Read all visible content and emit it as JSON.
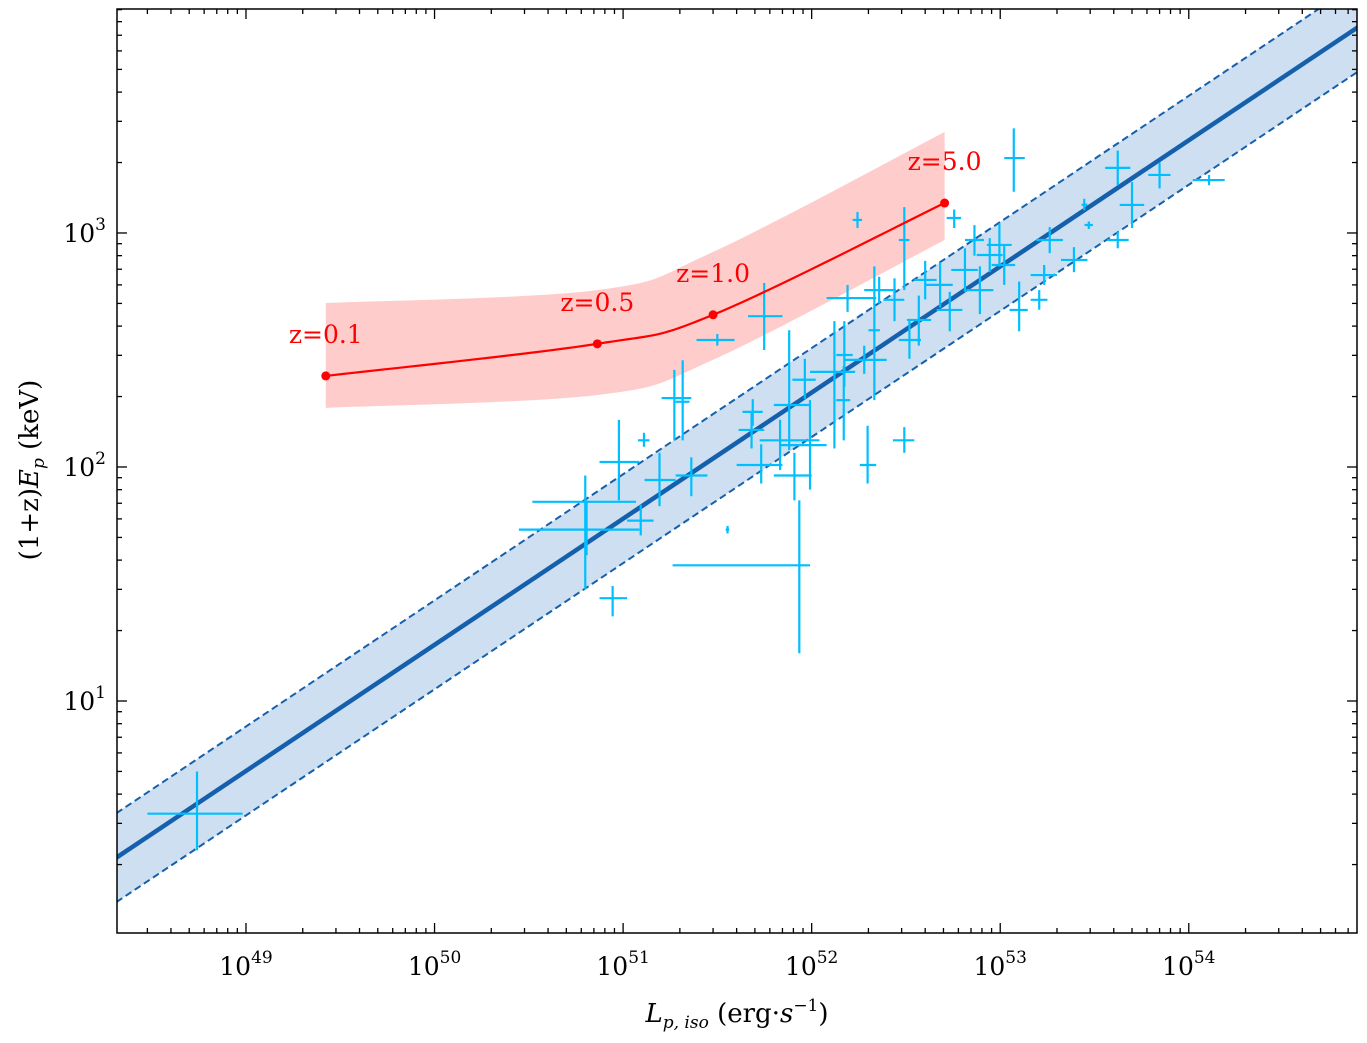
{
  "chart_data": {
    "type": "scatter",
    "title": "",
    "xlabel": {
      "var": "L",
      "sub": "p, iso",
      "unit_pre": " (erg·",
      "unit_var": "s",
      "unit_sup": "−1",
      "unit_post": ")"
    },
    "ylabel": {
      "pre": "(1+z)",
      "var": "E",
      "sub": "p",
      "unit": " (keV)"
    },
    "xscale": "log",
    "yscale": "log",
    "xlim": [
      2.07e+48,
      7.8e+54
    ],
    "ylim": [
      1.02,
      9060
    ],
    "grid": false,
    "legend": "none",
    "x_ticks": [
      {
        "value": 1e+49,
        "base": "10",
        "exp": "49"
      },
      {
        "value": 1e+50,
        "base": "10",
        "exp": "50"
      },
      {
        "value": 1e+51,
        "base": "10",
        "exp": "51"
      },
      {
        "value": 1e+52,
        "base": "10",
        "exp": "52"
      },
      {
        "value": 1e+53,
        "base": "10",
        "exp": "53"
      },
      {
        "value": 1e+54,
        "base": "10",
        "exp": "54"
      }
    ],
    "y_ticks": [
      {
        "value": 10,
        "base": "10",
        "exp": "1"
      },
      {
        "value": 100,
        "base": "10",
        "exp": "2"
      },
      {
        "value": 1000,
        "base": "10",
        "exp": "3"
      }
    ],
    "fit": {
      "slope": 0.539,
      "Ep_at_1e52": 208,
      "scatter_dex": 0.19,
      "color": "#1560ad",
      "band_color": "#cddff0"
    },
    "model_track": {
      "color": "#ff0000",
      "band_color": "#ffcccc",
      "points": [
        {
          "label": "z=0.1",
          "L": 2.65e+49,
          "Ep": 245,
          "Ep_upper": 502,
          "Ep_lower": 179
        },
        {
          "label": "z=0.5",
          "L": 7.3e+50,
          "Ep": 336,
          "Ep_upper": 570,
          "Ep_lower": 203
        },
        {
          "label": "z=1.0",
          "L": 3e+51,
          "Ep": 447,
          "Ep_upper": 830,
          "Ep_lower": 287
        },
        {
          "label": "z=5.0",
          "L": 5.07e+52,
          "Ep": 1343,
          "Ep_upper": 2700,
          "Ep_lower": 933
        }
      ]
    },
    "data_color": "#00bfff",
    "data_columns": [
      "L",
      "L_lo",
      "L_hi",
      "Ep",
      "Ep_lo",
      "Ep_hi"
    ],
    "data": [
      [
        5.5e+48,
        3e+48,
        9.6e+48,
        3.3,
        2.3,
        5.0
      ],
      [
        6.4e+50,
        2.8e+50,
        1.22e+51,
        54,
        42,
        72
      ],
      [
        6.3e+50,
        3.3e+50,
        1.17e+51,
        71,
        30,
        92
      ],
      [
        8.8e+50,
        7.5e+50,
        1.05e+51,
        27.5,
        23,
        31
      ],
      [
        8.6e+51,
        1.83e+51,
        9.8e+51,
        38,
        16,
        72
      ],
      [
        9.5e+50,
        7.5e+50,
        1.22e+51,
        105,
        72,
        159
      ],
      [
        1.24e+51,
        1.05e+51,
        1.45e+51,
        59,
        51,
        69
      ],
      [
        1.29e+51,
        1.2e+51,
        1.38e+51,
        130,
        122,
        140
      ],
      [
        1.56e+51,
        1.3e+51,
        1.9e+51,
        88,
        68,
        115
      ],
      [
        1.87e+51,
        1.6e+51,
        2.3e+51,
        197,
        130,
        260
      ],
      [
        2.3e+51,
        1.9e+51,
        2.8e+51,
        92,
        75,
        110
      ],
      [
        2.07e+51,
        1.9e+51,
        2.25e+51,
        190,
        130,
        286
      ],
      [
        3.16e+51,
        2.45e+51,
        3.9e+51,
        349,
        330,
        370
      ],
      [
        5.6e+51,
        4.6e+51,
        7e+51,
        441,
        316,
        611
      ],
      [
        4.87e+51,
        4.3e+51,
        5.5e+51,
        172,
        150,
        195
      ],
      [
        4.8e+51,
        4.1e+51,
        5.6e+51,
        144,
        120,
        170
      ],
      [
        5.4e+51,
        4e+51,
        7e+51,
        102,
        85,
        125
      ],
      [
        6.8e+51,
        5.3e+51,
        1.1e+52,
        130,
        97,
        159
      ],
      [
        7.6e+51,
        6.3e+51,
        9.8e+51,
        184,
        118,
        384
      ],
      [
        8.1e+51,
        6.3e+51,
        1e+52,
        92,
        72,
        115
      ],
      [
        9.2e+51,
        7.9e+51,
        1.05e+52,
        236,
        195,
        290
      ],
      [
        9.8e+51,
        6.8e+51,
        1.2e+52,
        124,
        80,
        193
      ],
      [
        1.32e+52,
        9.8e+51,
        1.7e+52,
        255,
        120,
        420
      ],
      [
        1.55e+52,
        1.2e+52,
        2.2e+52,
        527,
        460,
        600
      ],
      [
        1.49e+52,
        1.35e+52,
        1.65e+52,
        301,
        220,
        420
      ],
      [
        1.48e+52,
        1.35e+52,
        1.6e+52,
        193,
        130,
        270
      ],
      [
        1.75e+52,
        1.65e+52,
        1.85e+52,
        1137,
        1050,
        1230
      ],
      [
        1.98e+52,
        1.8e+52,
        2.2e+52,
        102,
        85,
        150
      ],
      [
        1.9e+52,
        1.5e+52,
        2.5e+52,
        287,
        250,
        330
      ],
      [
        2.15e+52,
        2e+52,
        2.3e+52,
        384,
        193,
        720
      ],
      [
        2.28e+52,
        1.9e+52,
        2.8e+52,
        570,
        500,
        650
      ],
      [
        2.75e+52,
        2.4e+52,
        3.1e+52,
        518,
        420,
        640
      ],
      [
        3.1e+52,
        2.9e+52,
        3.3e+52,
        933,
        570,
        1290
      ],
      [
        3.1e+52,
        2.7e+52,
        3.5e+52,
        130,
        115,
        148
      ],
      [
        3.3e+52,
        2.9e+52,
        3.8e+52,
        349,
        290,
        420
      ],
      [
        3.7e+52,
        3.2e+52,
        4.3e+52,
        425,
        330,
        540
      ],
      [
        4e+52,
        3.5e+52,
        4.6e+52,
        630,
        520,
        760
      ],
      [
        4.8e+52,
        4e+52,
        5.6e+52,
        600,
        480,
        750
      ],
      [
        5.4e+52,
        4.6e+52,
        6.3e+52,
        469,
        380,
        560
      ],
      [
        5.7e+52,
        5.2e+52,
        6.2e+52,
        1159,
        1050,
        1260
      ],
      [
        6.5e+52,
        5.5e+52,
        7.6e+52,
        695,
        560,
        860
      ],
      [
        7.3e+52,
        6.5e+52,
        8.2e+52,
        933,
        800,
        1080
      ],
      [
        7.8e+52,
        6.6e+52,
        9.2e+52,
        570,
        450,
        720
      ],
      [
        8.8e+52,
        7.5e+52,
        1.03e+53,
        805,
        680,
        950
      ],
      [
        9.9e+52,
        8.5e+52,
        1.15e+53,
        889,
        720,
        1100
      ],
      [
        1.05e+53,
        9e+52,
        1.2e+53,
        730,
        600,
        880
      ],
      [
        1.18e+53,
        1.05e+53,
        1.35e+53,
        2090,
        1500,
        2800
      ],
      [
        1.26e+53,
        1.12e+53,
        1.4e+53,
        469,
        380,
        620
      ],
      [
        1.61e+53,
        1.45e+53,
        1.78e+53,
        518,
        470,
        570
      ],
      [
        1.83e+53,
        1.55e+53,
        2.15e+53,
        933,
        820,
        1060
      ],
      [
        1.71e+53,
        1.45e+53,
        2e+53,
        661,
        600,
        730
      ],
      [
        2.46e+53,
        2.1e+53,
        2.9e+53,
        767,
        680,
        870
      ],
      [
        2.79e+53,
        2.7e+53,
        2.9e+53,
        1320,
        1250,
        1400
      ],
      [
        2.95e+53,
        2.8e+53,
        3.1e+53,
        1082,
        1040,
        1120
      ],
      [
        4.2e+53,
        3.7e+53,
        4.8e+53,
        933,
        860,
        1010
      ],
      [
        4.2e+53,
        3.6e+53,
        4.9e+53,
        1897,
        1600,
        2250
      ],
      [
        5e+53,
        4.3e+53,
        5.8e+53,
        1318,
        1050,
        1650
      ],
      [
        7e+53,
        6.1e+53,
        8e+53,
        1770,
        1550,
        2000
      ],
      [
        1.28e+54,
        1.05e+54,
        1.55e+54,
        1683,
        1600,
        1770
      ],
      [
        3.58e+51,
        3.5e+51,
        3.65e+51,
        54,
        52,
        56
      ]
    ]
  }
}
